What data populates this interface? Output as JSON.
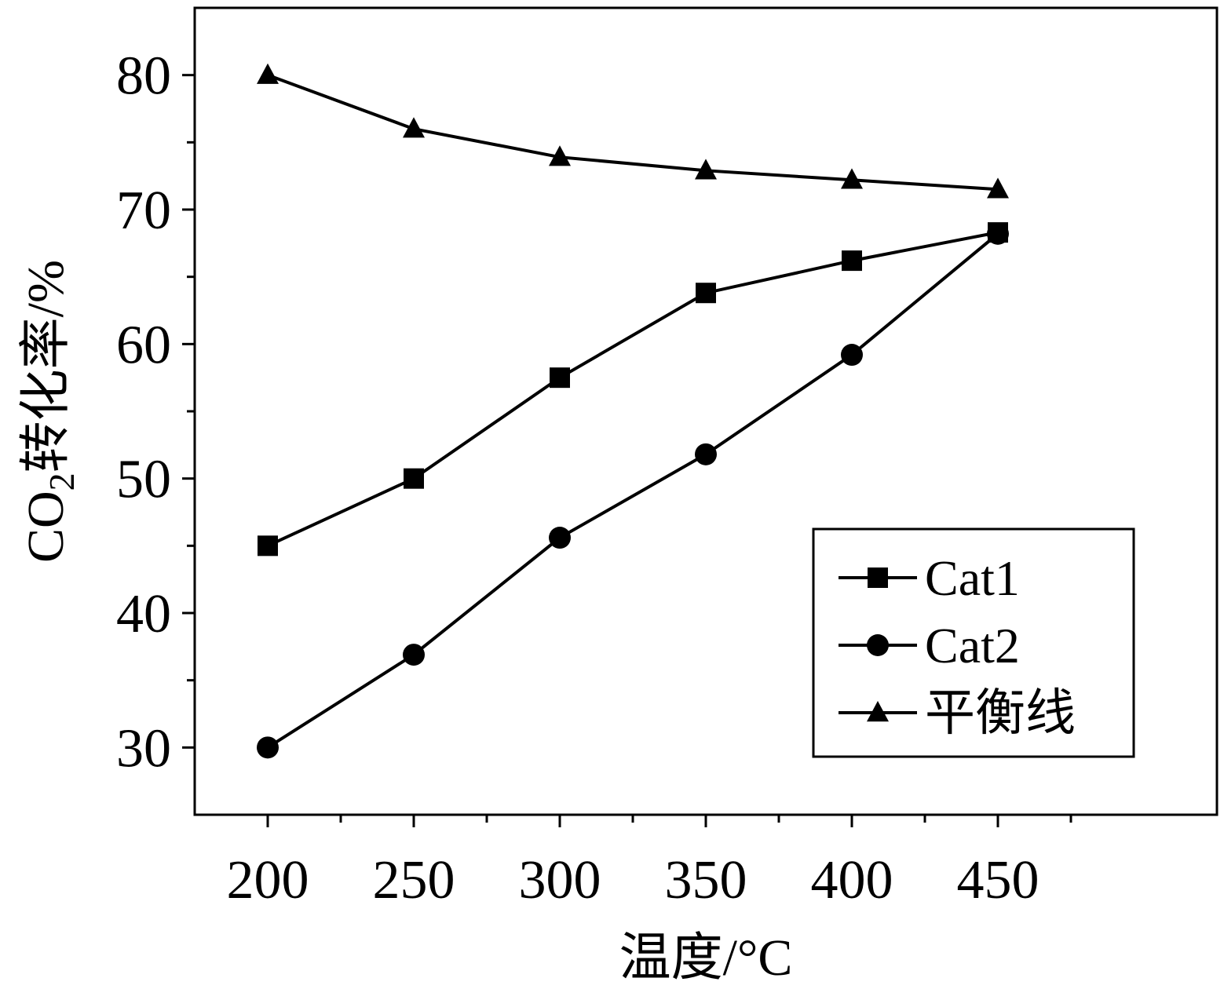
{
  "chart_data": {
    "type": "line",
    "title": "",
    "xlabel": "温度/°C",
    "ylabel_parts": {
      "before": "CO",
      "subscript": "2",
      "after": "转化率/%"
    },
    "xlim": [
      175,
      525
    ],
    "ylim": [
      25,
      85
    ],
    "x": [
      200,
      250,
      300,
      350,
      400,
      450
    ],
    "x_ticks": [
      200,
      250,
      300,
      350,
      400,
      450
    ],
    "x_minor_ticks": [
      225,
      275,
      325,
      375,
      425,
      475
    ],
    "y_ticks": [
      30,
      40,
      50,
      60,
      70,
      80
    ],
    "y_minor_ticks": [
      35,
      45,
      55,
      65,
      75
    ],
    "grid": false,
    "legend_position": "bottom-right",
    "line_color": "#000000",
    "series": [
      {
        "name": "Cat1",
        "marker": "square",
        "values": [
          45.0,
          50.0,
          57.5,
          63.8,
          66.2,
          68.3
        ]
      },
      {
        "name": "Cat2",
        "marker": "circle",
        "values": [
          30.0,
          36.9,
          45.6,
          51.8,
          59.2,
          68.2
        ]
      },
      {
        "name": "平衡线",
        "marker": "triangle",
        "values": [
          80.0,
          76.0,
          73.9,
          72.9,
          72.2,
          71.5
        ]
      }
    ]
  }
}
